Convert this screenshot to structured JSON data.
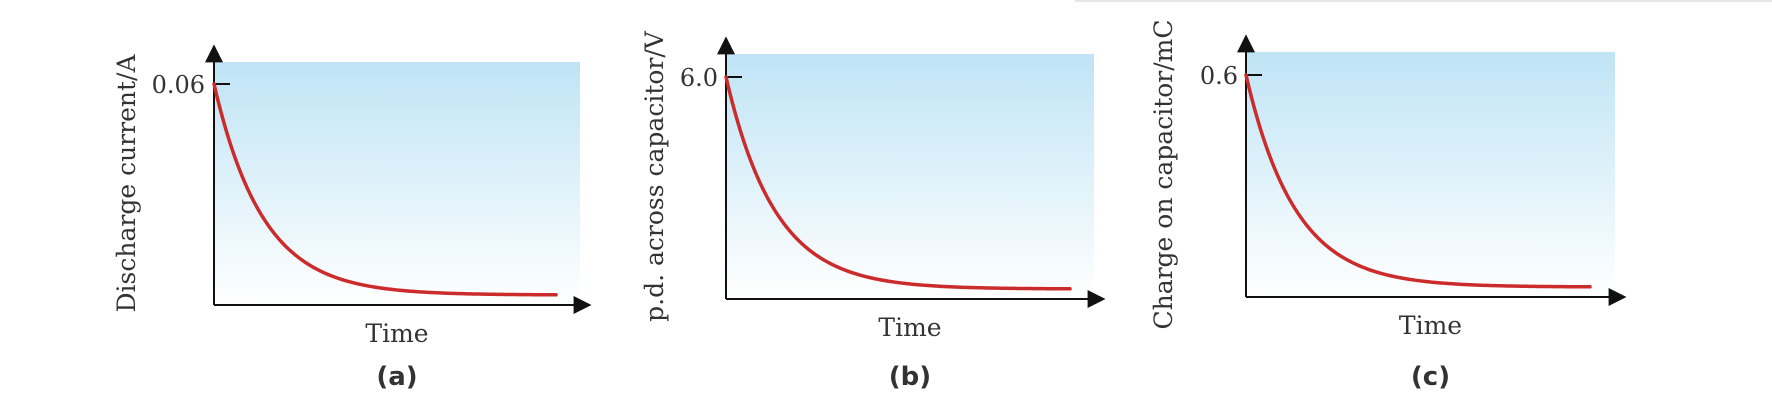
{
  "figure": {
    "chart_data": [
      {
        "type": "line",
        "panel_label": "(a)",
        "ylabel": "Discharge current/A",
        "xlabel": "Time",
        "y_tick_label": "0.06",
        "y_tick_value": 0.06,
        "ylim": [
          0,
          0.06
        ],
        "x": [
          0,
          1,
          2,
          3,
          4,
          5,
          6,
          7
        ],
        "series": [
          {
            "values": [
              0.06,
              0.0221,
              0.0081,
              0.003,
              0.0011,
              0.0004,
              0.00015,
              5e-05
            ]
          }
        ],
        "colors": {
          "curve": "#cc2b2b",
          "background_top": "#bfe4f5",
          "background_bottom": "#ffffff"
        },
        "grid": false
      },
      {
        "type": "line",
        "panel_label": "(b)",
        "ylabel": "p.d. across capacitor/V",
        "xlabel": "Time",
        "y_tick_label": "6.0",
        "y_tick_value": 6.0,
        "ylim": [
          0,
          6.0
        ],
        "x": [
          0,
          1,
          2,
          3,
          4,
          5,
          6,
          7
        ],
        "series": [
          {
            "values": [
              6.0,
              2.21,
              0.81,
              0.3,
              0.11,
              0.04,
              0.015,
              0.005
            ]
          }
        ],
        "colors": {
          "curve": "#cc2b2b",
          "background_top": "#bfe4f5",
          "background_bottom": "#ffffff"
        },
        "grid": false
      },
      {
        "type": "line",
        "panel_label": "(c)",
        "ylabel": "Charge on capacitor/mC",
        "xlabel": "Time",
        "y_tick_label": "0.6",
        "y_tick_value": 0.6,
        "ylim": [
          0,
          0.6
        ],
        "x": [
          0,
          1,
          2,
          3,
          4,
          5,
          6,
          7
        ],
        "series": [
          {
            "values": [
              0.6,
              0.221,
              0.081,
              0.03,
              0.011,
              0.004,
              0.0015,
              0.0005
            ]
          }
        ],
        "colors": {
          "curve": "#cc2b2b",
          "background_top": "#bfe4f5",
          "background_bottom": "#ffffff"
        },
        "grid": false
      }
    ]
  }
}
